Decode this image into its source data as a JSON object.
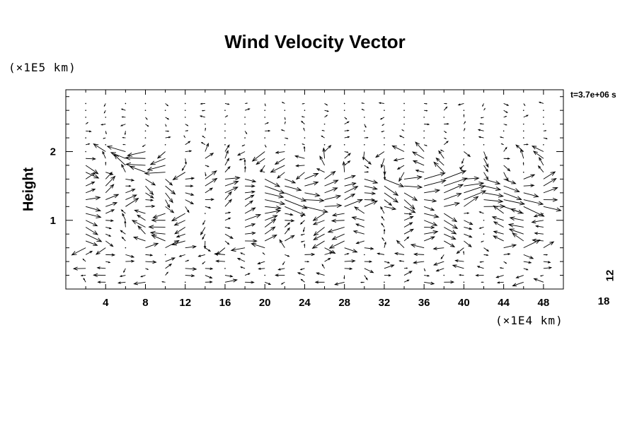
{
  "chart_data": {
    "type": "vector-field",
    "title": "Wind Velocity Vector",
    "ylabel": "Height",
    "y_unit": "(×1E5 km)",
    "x_unit": "(×1E4 km)",
    "time_label": "t=3.7e+06 s",
    "xlim": [
      0,
      50
    ],
    "ylim": [
      0,
      2.9
    ],
    "x_ticks": [
      4,
      8,
      12,
      16,
      20,
      24,
      28,
      32,
      36,
      40,
      44,
      48
    ],
    "y_ticks": [
      1,
      2
    ],
    "reference_vector": {
      "x_component": "18",
      "y_component": "12"
    },
    "grid": {
      "x_spacing": 2,
      "y_rows": [
        0.1,
        0.2,
        0.3,
        0.4,
        0.5,
        0.6,
        0.7,
        0.8,
        0.9,
        1.0,
        1.1,
        1.2,
        1.3,
        1.4,
        1.5,
        1.6,
        1.7,
        1.8,
        1.9,
        2.0,
        2.1,
        2.2,
        2.3,
        2.4,
        2.5,
        2.6,
        2.7
      ]
    },
    "note": "Field: calm above 2.0; strong rightward jet near 1.2–1.5; left-heavy shear near 1.7–2.0; oscillating flow below 1.0"
  }
}
